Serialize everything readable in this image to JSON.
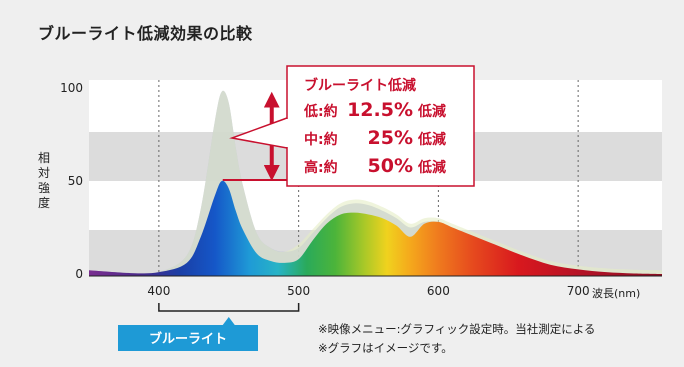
{
  "title": "ブルーライト低減効果の比較",
  "y_axis_label": "相対強度",
  "x_unit_label": "波長(nm)",
  "callout": {
    "heading": "ブルーライト低減",
    "rows": [
      {
        "mode": "低:約",
        "value": "12.5%",
        "suffix": "低減"
      },
      {
        "mode": "中:約",
        "value": "25%",
        "suffix": "低減"
      },
      {
        "mode": "高:約",
        "value": "50%",
        "suffix": "低減"
      }
    ]
  },
  "blue_range_label": "ブルーライト",
  "notes": [
    "※映像メニュー:グラフィック設定時。当社測定による",
    "※グラフはイメージです。"
  ],
  "colors": {
    "accent": "#c8102e",
    "blue_label": "#1e9ad6",
    "original_spectrum": "#b4b9dc",
    "band": "#dcdcdc",
    "panel": "#efefef",
    "plot": "#ffffff"
  },
  "chart_data": {
    "type": "area",
    "title": "ブルーライト低減効果の比較",
    "ylabel": "相対強度",
    "xlabel": "波長(nm)",
    "xlim": [
      350,
      760
    ],
    "ylim": [
      0,
      100
    ],
    "x_ticks": [
      400,
      500,
      600,
      700
    ],
    "y_ticks": [
      0,
      50,
      100
    ],
    "series": [
      {
        "x": [
          350,
          380,
          400,
          420,
          430,
          440,
          445,
          450,
          455,
          460,
          470,
          480,
          490,
          500,
          510,
          520,
          530,
          540,
          550,
          560,
          570,
          580,
          590,
          600,
          610,
          620,
          640,
          660,
          680,
          700,
          720,
          740,
          760
        ],
        "y": [
          2,
          0.5,
          1,
          10,
          35,
          82,
          98,
          92,
          68,
          48,
          22,
          14,
          12,
          14,
          22,
          30,
          36,
          38,
          37,
          34,
          30,
          25,
          28,
          28,
          25,
          22,
          16,
          10,
          5,
          2.5,
          1,
          0.3,
          0
        ]
      },
      {
        "x": [
          350,
          380,
          400,
          420,
          430,
          440,
          445,
          450,
          455,
          460,
          470,
          480,
          490,
          500,
          510,
          520,
          530,
          540,
          550,
          560,
          570,
          580,
          590,
          600,
          610,
          620,
          640,
          660,
          680,
          700,
          720,
          740,
          760
        ],
        "y": [
          2,
          0.5,
          1,
          6,
          20,
          42,
          50,
          46,
          34,
          24,
          11,
          7,
          6,
          8,
          18,
          27,
          32,
          33,
          32,
          30,
          26,
          20,
          27,
          28,
          25,
          22,
          16,
          10,
          5,
          2.5,
          1,
          0.3,
          0
        ]
      }
    ],
    "annotations": [
      {
        "type": "reduction-arrow",
        "x": 450,
        "from": 98,
        "to": 50
      },
      {
        "type": "range",
        "from": 400,
        "to": 500,
        "label": "ブルーライト"
      }
    ],
    "grid": "dotted vertical lines at x ticks; alternating horizontal gray bands"
  }
}
